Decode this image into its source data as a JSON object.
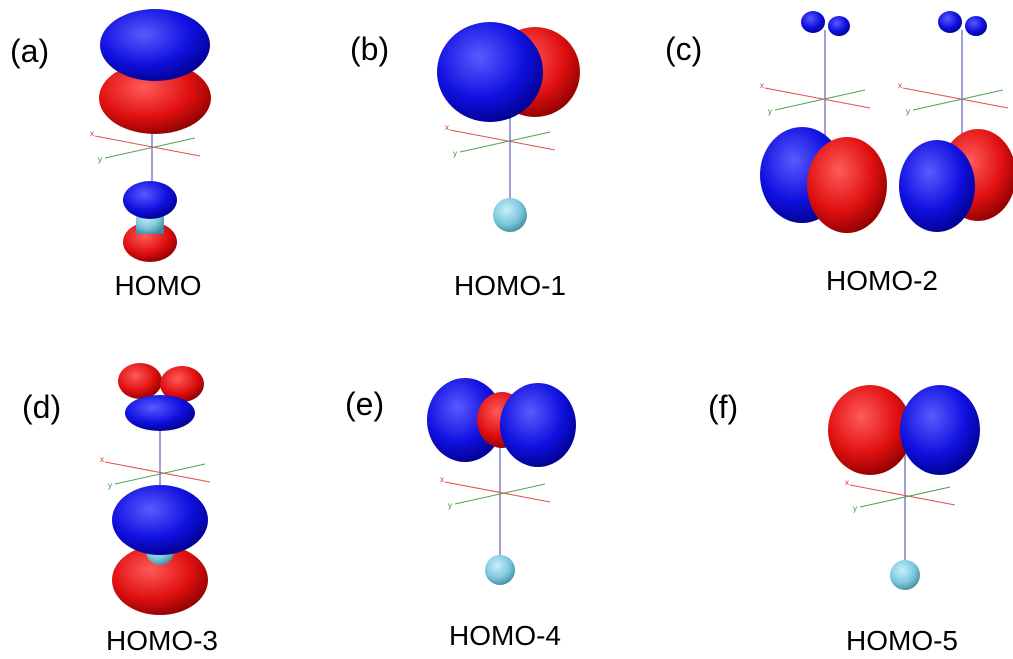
{
  "panels": [
    {
      "label": "(a)",
      "caption": "HOMO",
      "axis_x": "x",
      "axis_y": "y"
    },
    {
      "label": "(b)",
      "caption": "HOMO-1",
      "axis_x": "x",
      "axis_y": "y"
    },
    {
      "label": "(c)",
      "caption": "HOMO-2",
      "axis_x": "x",
      "axis_y": "y"
    },
    {
      "label": "(d)",
      "caption": "HOMO-3",
      "axis_x": "x",
      "axis_y": "y"
    },
    {
      "label": "(e)",
      "caption": "HOMO-4",
      "axis_x": "x",
      "axis_y": "y"
    },
    {
      "label": "(f)",
      "caption": "HOMO-5",
      "axis_x": "x",
      "axis_y": "y"
    }
  ]
}
